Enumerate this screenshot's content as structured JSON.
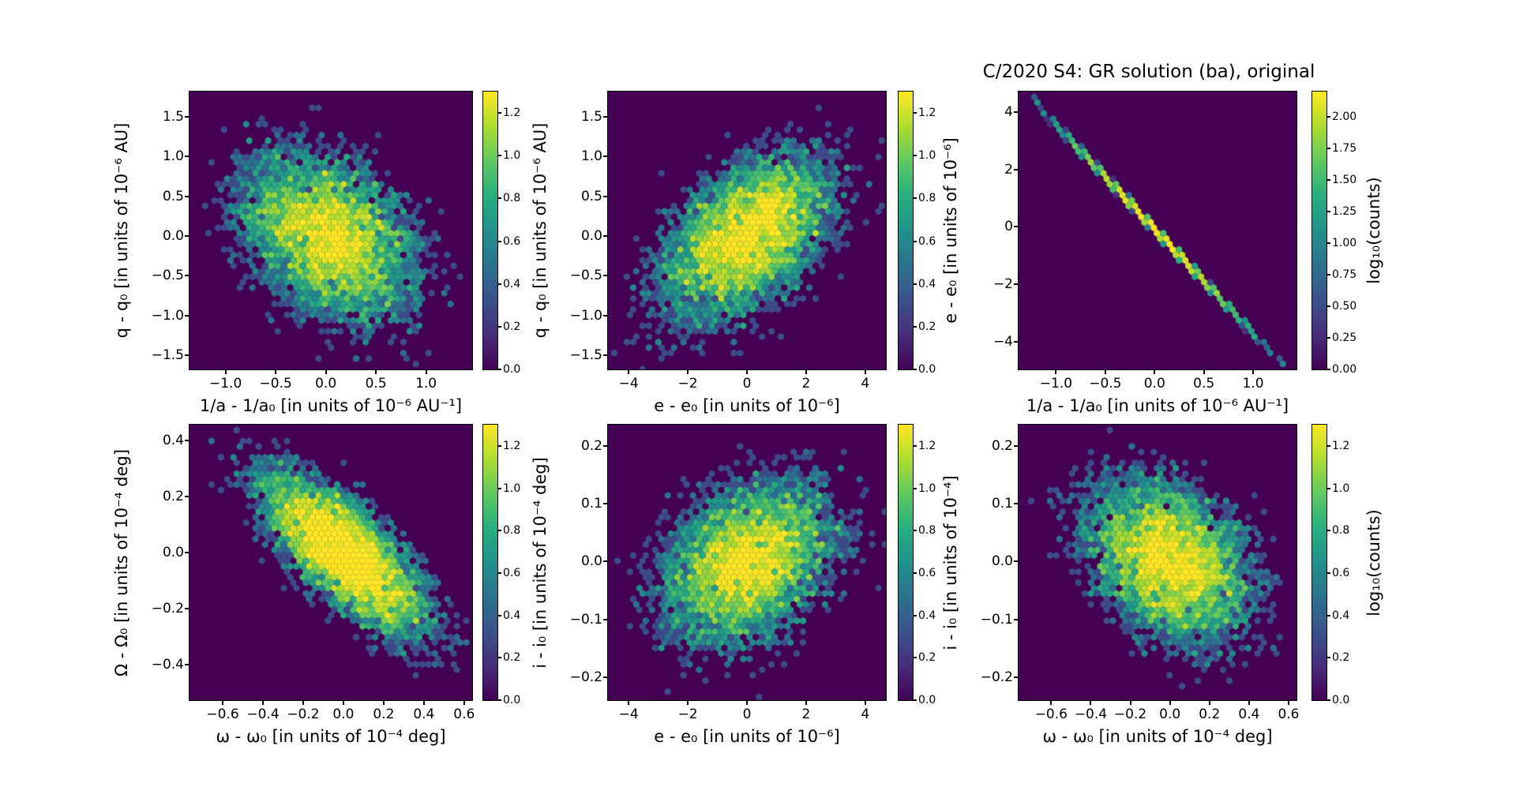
{
  "title": "C/2020 S4: GR solution (ba), original",
  "colors": {
    "background": "#ffffff",
    "text": "#000000",
    "hexbin_background": "#440154",
    "viridis_stops": [
      "#440154",
      "#472d7b",
      "#3b528b",
      "#2c728e",
      "#21918c",
      "#28ae80",
      "#5ec962",
      "#addc30",
      "#fde725"
    ]
  },
  "chart_data": [
    {
      "id": "q-vs-inva",
      "type": "hexbin",
      "row": 0,
      "col": 0,
      "xlabel": "1/a - 1/a₀ [in units of 10⁻⁶ AU⁻¹]",
      "ylabel": "q - q₀ [in units of 10⁻⁶ AU]",
      "xlim": [
        -1.36,
        1.46
      ],
      "ylim": [
        -1.68,
        1.82
      ],
      "xticks": [
        -1.0,
        -0.5,
        0.0,
        0.5,
        1.0
      ],
      "xtick_labels": [
        "−1.0",
        "−0.5",
        "0.0",
        "0.5",
        "1.0"
      ],
      "yticks": [
        -1.5,
        -1.0,
        -0.5,
        0.0,
        0.5,
        1.0,
        1.5
      ],
      "ytick_labels": [
        "−1.5",
        "−1.0",
        "−0.5",
        "0.0",
        "0.5",
        "1.0",
        "1.5"
      ],
      "colorbar": {
        "vmin": 0.0,
        "vmax": 1.3,
        "ticks": [
          0.0,
          0.2,
          0.4,
          0.6,
          0.8,
          1.0,
          1.2
        ],
        "tick_labels": [
          "0.0",
          "0.2",
          "0.4",
          "0.6",
          "0.8",
          "1.0",
          "1.2"
        ],
        "label": ""
      },
      "distribution": {
        "kind": "gaussian",
        "n": 7000,
        "mean": [
          0.03,
          0.0
        ],
        "sigma": [
          0.46,
          0.56
        ],
        "rho": -0.35,
        "seed": 11
      }
    },
    {
      "id": "q-vs-e",
      "type": "hexbin",
      "row": 0,
      "col": 1,
      "xlabel": "e - e₀ [in units of 10⁻⁶]",
      "ylabel": "q - q₀ [in units of 10⁻⁶ AU]",
      "xlim": [
        -4.7,
        4.7
      ],
      "ylim": [
        -1.68,
        1.82
      ],
      "xticks": [
        -4,
        -2,
        0,
        2,
        4
      ],
      "xtick_labels": [
        "−4",
        "−2",
        "0",
        "2",
        "4"
      ],
      "yticks": [
        -1.5,
        -1.0,
        -0.5,
        0.0,
        0.5,
        1.0,
        1.5
      ],
      "ytick_labels": [
        "−1.5",
        "−1.0",
        "−0.5",
        "0.0",
        "0.5",
        "1.0",
        "1.5"
      ],
      "colorbar": {
        "vmin": 0.0,
        "vmax": 1.3,
        "ticks": [
          0.0,
          0.2,
          0.4,
          0.6,
          0.8,
          1.0,
          1.2
        ],
        "tick_labels": [
          "0.0",
          "0.2",
          "0.4",
          "0.6",
          "0.8",
          "1.0",
          "1.2"
        ],
        "label": ""
      },
      "distribution": {
        "kind": "gaussian",
        "n": 7000,
        "mean": [
          0.0,
          0.0
        ],
        "sigma": [
          1.55,
          0.56
        ],
        "rho": 0.5,
        "seed": 22
      }
    },
    {
      "id": "e-vs-inva",
      "type": "hexbin",
      "row": 0,
      "col": 2,
      "xlabel": "1/a - 1/a₀ [in units of 10⁻⁶ AU⁻¹]",
      "ylabel": "e - e₀ [in units of 10⁻⁶]",
      "xlim": [
        -1.38,
        1.44
      ],
      "ylim": [
        -4.97,
        4.71
      ],
      "xticks": [
        -1.0,
        -0.5,
        0.0,
        0.5,
        1.0
      ],
      "xtick_labels": [
        "−1.0",
        "−0.5",
        "0.0",
        "0.5",
        "1.0"
      ],
      "yticks": [
        -4,
        -2,
        0,
        2,
        4
      ],
      "ytick_labels": [
        "−4",
        "−2",
        "0",
        "2",
        "4"
      ],
      "colorbar": {
        "vmin": 0.0,
        "vmax": 2.2,
        "ticks": [
          0.0,
          0.25,
          0.5,
          0.75,
          1.0,
          1.25,
          1.5,
          1.75,
          2.0
        ],
        "tick_labels": [
          "0.00",
          "0.25",
          "0.50",
          "0.75",
          "1.00",
          "1.25",
          "1.50",
          "1.75",
          "2.00"
        ],
        "label": "log₁₀(counts)"
      },
      "distribution": {
        "kind": "line",
        "n": 4200,
        "sigma_x": 0.46,
        "slope": -3.63,
        "intercept": -0.08,
        "x_range": [
          -1.22,
          1.28
        ],
        "noise": 0.04,
        "seed": 33
      }
    },
    {
      "id": "Omega-vs-omega",
      "type": "hexbin",
      "row": 1,
      "col": 0,
      "xlabel": "ω - ω₀ [in units of 10⁻⁴ deg]",
      "ylabel": "Ω - Ω₀ [in units of 10⁻⁴ deg]",
      "xlim": [
        -0.765,
        0.64
      ],
      "ylim": [
        -0.527,
        0.456
      ],
      "xticks": [
        -0.6,
        -0.4,
        -0.2,
        0.0,
        0.2,
        0.4,
        0.6
      ],
      "xtick_labels": [
        "−0.6",
        "−0.4",
        "−0.2",
        "0.0",
        "0.2",
        "0.4",
        "0.6"
      ],
      "yticks": [
        -0.4,
        -0.2,
        0.0,
        0.2,
        0.4
      ],
      "ytick_labels": [
        "−0.4",
        "−0.2",
        "0.0",
        "0.2",
        "0.4"
      ],
      "colorbar": {
        "vmin": 0.0,
        "vmax": 1.3,
        "ticks": [
          0.0,
          0.2,
          0.4,
          0.6,
          0.8,
          1.0,
          1.2
        ],
        "tick_labels": [
          "0.0",
          "0.2",
          "0.4",
          "0.6",
          "0.8",
          "1.0",
          "1.2"
        ],
        "label": ""
      },
      "distribution": {
        "kind": "gaussian",
        "n": 7000,
        "mean": [
          0.0,
          0.0
        ],
        "sigma": [
          0.22,
          0.155
        ],
        "rho": -0.75,
        "seed": 44
      }
    },
    {
      "id": "i-vs-e",
      "type": "hexbin",
      "row": 1,
      "col": 1,
      "xlabel": "e - e₀ [in units of 10⁻⁶]",
      "ylabel": "i - i₀ [in units of 10⁻⁴ deg]",
      "xlim": [
        -4.7,
        4.7
      ],
      "ylim": [
        -0.24,
        0.237
      ],
      "xticks": [
        -4,
        -2,
        0,
        2,
        4
      ],
      "xtick_labels": [
        "−4",
        "−2",
        "0",
        "2",
        "4"
      ],
      "yticks": [
        -0.2,
        -0.1,
        0.0,
        0.1,
        0.2
      ],
      "ytick_labels": [
        "−0.2",
        "−0.1",
        "0.0",
        "0.1",
        "0.2"
      ],
      "colorbar": {
        "vmin": 0.0,
        "vmax": 1.3,
        "ticks": [
          0.0,
          0.2,
          0.4,
          0.6,
          0.8,
          1.0,
          1.2
        ],
        "tick_labels": [
          "0.0",
          "0.2",
          "0.4",
          "0.6",
          "0.8",
          "1.0",
          "1.2"
        ],
        "label": ""
      },
      "distribution": {
        "kind": "gaussian",
        "n": 7000,
        "mean": [
          0.0,
          0.0
        ],
        "sigma": [
          1.55,
          0.073
        ],
        "rho": 0.32,
        "seed": 55
      }
    },
    {
      "id": "i-vs-omega",
      "type": "hexbin",
      "row": 1,
      "col": 2,
      "xlabel": "ω - ω₀ [in units of 10⁻⁴ deg]",
      "ylabel": "i - i₀ [in units of 10⁻⁴]",
      "xlim": [
        -0.765,
        0.64
      ],
      "ylim": [
        -0.24,
        0.237
      ],
      "xticks": [
        -0.6,
        -0.4,
        -0.2,
        0.0,
        0.2,
        0.4,
        0.6
      ],
      "xtick_labels": [
        "−0.6",
        "−0.4",
        "−0.2",
        "0.0",
        "0.2",
        "0.4",
        "0.6"
      ],
      "yticks": [
        -0.2,
        -0.1,
        0.0,
        0.1,
        0.2
      ],
      "ytick_labels": [
        "−0.2",
        "−0.1",
        "0.0",
        "0.1",
        "0.2"
      ],
      "colorbar": {
        "vmin": 0.0,
        "vmax": 1.3,
        "ticks": [
          0.0,
          0.2,
          0.4,
          0.6,
          0.8,
          1.0,
          1.2
        ],
        "tick_labels": [
          "0.0",
          "0.2",
          "0.4",
          "0.6",
          "0.8",
          "1.0",
          "1.2"
        ],
        "label": "log₁₀(counts)"
      },
      "distribution": {
        "kind": "gaussian",
        "n": 7000,
        "mean": [
          0.0,
          0.0
        ],
        "sigma": [
          0.22,
          0.073
        ],
        "rho": -0.33,
        "seed": 66
      }
    }
  ]
}
